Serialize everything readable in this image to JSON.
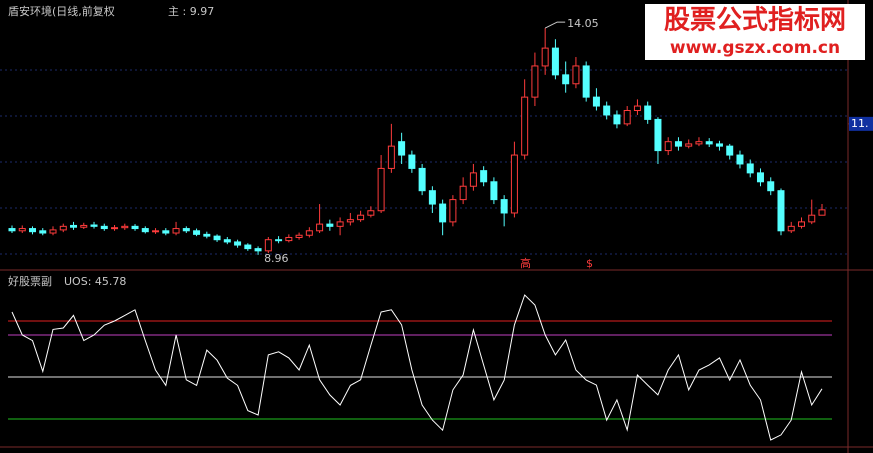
{
  "chart_data": [
    {
      "type": "candlestick",
      "title": "盾安环境(日线,前复权",
      "main_label": "主 : 9.97",
      "high_label": "14.05",
      "low_label": "8.96",
      "signals": [
        "高",
        "$"
      ],
      "up_color": "#ff3c3c",
      "down_color": "#54ffff",
      "ylim": [
        8.62,
        14.68
      ],
      "yticks": [
        {
          "value": 11.9,
          "label": "11."
        }
      ],
      "open": [
        9.55,
        9.5,
        9.55,
        9.5,
        9.45,
        9.52,
        9.62,
        9.58,
        9.63,
        9.6,
        9.55,
        9.57,
        9.6,
        9.55,
        9.48,
        9.5,
        9.45,
        9.55,
        9.5,
        9.42,
        9.38,
        9.3,
        9.25,
        9.18,
        9.1,
        9.05,
        9.3,
        9.28,
        9.35,
        9.4,
        9.5,
        9.65,
        9.6,
        9.7,
        9.75,
        9.85,
        9.95,
        10.9,
        11.5,
        11.2,
        10.9,
        10.4,
        10.1,
        9.7,
        10.2,
        10.5,
        10.85,
        10.6,
        10.2,
        9.9,
        11.2,
        12.5,
        13.2,
        13.6,
        13.0,
        12.8,
        13.2,
        12.5,
        12.3,
        12.1,
        11.9,
        12.2,
        12.3,
        12.0,
        11.3,
        11.5,
        11.4,
        11.45,
        11.5,
        11.45,
        11.4,
        11.2,
        11.0,
        10.8,
        10.6,
        10.4,
        9.5,
        9.6,
        9.7,
        9.85
      ],
      "high": [
        9.62,
        9.62,
        9.6,
        9.56,
        9.6,
        9.66,
        9.7,
        9.68,
        9.7,
        9.66,
        9.63,
        9.66,
        9.65,
        9.6,
        9.56,
        9.56,
        9.7,
        9.6,
        9.55,
        9.48,
        9.42,
        9.36,
        9.3,
        9.22,
        9.15,
        9.36,
        9.38,
        9.42,
        9.46,
        9.58,
        10.1,
        9.75,
        9.8,
        9.9,
        9.95,
        10.05,
        11.2,
        11.9,
        11.7,
        11.3,
        11.0,
        10.5,
        10.2,
        10.3,
        10.7,
        11.0,
        10.95,
        10.7,
        10.3,
        11.5,
        12.9,
        13.5,
        14.05,
        13.8,
        13.3,
        13.4,
        13.3,
        12.7,
        12.4,
        12.2,
        12.3,
        12.45,
        12.4,
        12.05,
        11.6,
        11.6,
        11.55,
        11.6,
        11.58,
        11.52,
        11.45,
        11.3,
        11.1,
        10.9,
        10.7,
        10.45,
        9.7,
        9.8,
        10.2,
        10.1
      ],
      "low": [
        9.45,
        9.45,
        9.42,
        9.4,
        9.4,
        9.47,
        9.52,
        9.54,
        9.55,
        9.5,
        9.5,
        9.52,
        9.5,
        9.44,
        9.43,
        9.4,
        9.4,
        9.45,
        9.38,
        9.33,
        9.25,
        9.2,
        9.12,
        9.05,
        8.96,
        9.0,
        9.22,
        9.24,
        9.3,
        9.35,
        9.45,
        9.5,
        9.4,
        9.62,
        9.7,
        9.8,
        9.9,
        10.8,
        11.0,
        10.8,
        10.3,
        9.9,
        9.4,
        9.6,
        10.1,
        10.4,
        10.5,
        10.1,
        9.6,
        9.8,
        11.1,
        12.3,
        13.0,
        12.9,
        12.6,
        12.7,
        12.4,
        12.2,
        12.0,
        11.8,
        11.85,
        12.1,
        11.9,
        11.0,
        11.2,
        11.3,
        11.35,
        11.4,
        11.38,
        11.3,
        11.1,
        10.9,
        10.7,
        10.5,
        10.3,
        9.4,
        9.45,
        9.55,
        9.65,
        9.85
      ],
      "close": [
        9.5,
        9.55,
        9.48,
        9.45,
        9.52,
        9.6,
        9.58,
        9.62,
        9.6,
        9.55,
        9.57,
        9.6,
        9.55,
        9.48,
        9.5,
        9.45,
        9.55,
        9.5,
        9.42,
        9.38,
        9.3,
        9.25,
        9.18,
        9.1,
        9.05,
        9.3,
        9.28,
        9.35,
        9.4,
        9.5,
        9.65,
        9.6,
        9.7,
        9.75,
        9.85,
        9.95,
        10.9,
        11.4,
        11.2,
        10.9,
        10.4,
        10.1,
        9.7,
        10.2,
        10.5,
        10.8,
        10.6,
        10.2,
        9.9,
        11.2,
        12.5,
        13.2,
        13.6,
        13.0,
        12.8,
        13.2,
        12.5,
        12.3,
        12.1,
        11.9,
        12.2,
        12.3,
        12.0,
        11.3,
        11.5,
        11.4,
        11.45,
        11.5,
        11.45,
        11.4,
        11.2,
        11.0,
        10.8,
        10.6,
        10.4,
        9.5,
        9.6,
        9.7,
        9.85,
        9.97
      ]
    },
    {
      "type": "line",
      "title": "好股票副",
      "label": "UOS: 45.78",
      "color": "#ffffff",
      "ylim": [
        25.7,
        87.5
      ],
      "levels": [
        70,
        65,
        50,
        35
      ],
      "level_colors": [
        "#e02020",
        "#c040c0",
        "#e0e0e0",
        "#20c020"
      ],
      "values": [
        73.2,
        65,
        63,
        52,
        67,
        67.5,
        72,
        63,
        65,
        68.5,
        70,
        72,
        74,
        63,
        52.5,
        47,
        65,
        49,
        47,
        59.6,
        56,
        49.6,
        47,
        38,
        36.4,
        57.9,
        59,
        56.8,
        52.5,
        61.4,
        49,
        43.6,
        40,
        47,
        49,
        61.4,
        73.2,
        74,
        68.6,
        52.5,
        40,
        34.6,
        31,
        45.4,
        50.7,
        66.8,
        54.3,
        41.8,
        48.9,
        68.6,
        79.3,
        75.7,
        65,
        57.9,
        63.2,
        52.5,
        48.9,
        47.1,
        34.6,
        41.8,
        31.1,
        50.7,
        47.1,
        43.6,
        52.5,
        57.9,
        45.4,
        52.5,
        54.3,
        56.8,
        48.9,
        56.1,
        47.1,
        41.8,
        27.5,
        29.3,
        34.6,
        51.8,
        40,
        45.78
      ]
    }
  ],
  "watermark": {
    "title": "股票公式指标网",
    "url": "www.gszx.com.cn"
  }
}
